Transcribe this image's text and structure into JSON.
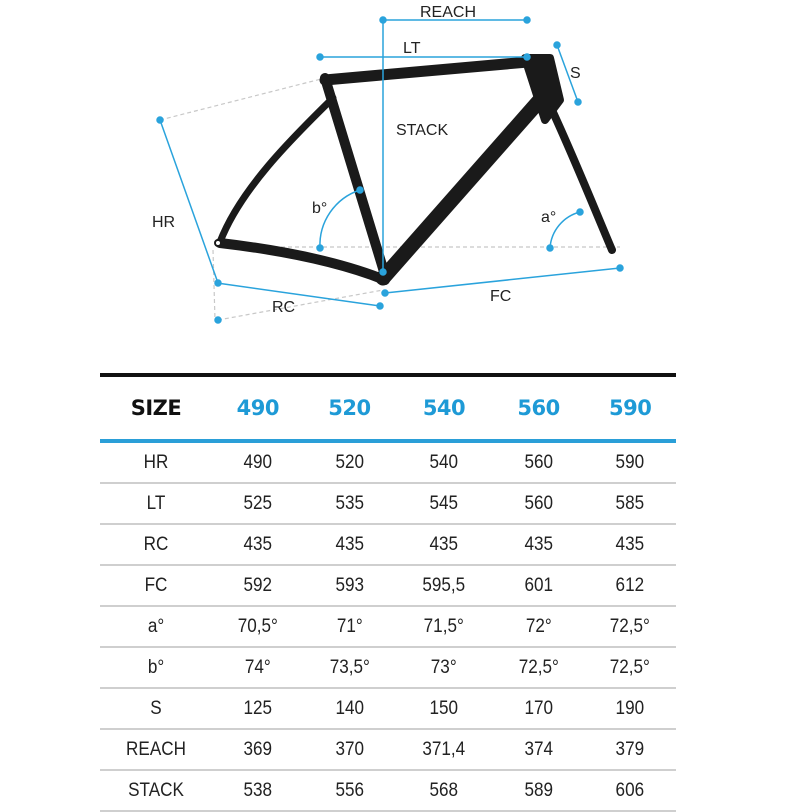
{
  "diagram": {
    "labels": {
      "reach": "REACH",
      "lt": "LT",
      "stack": "STACK",
      "s": "S",
      "hr": "HR",
      "rc": "RC",
      "fc": "FC",
      "a": "a°",
      "b": "b°"
    },
    "colors": {
      "frame": "#1a1a1a",
      "dimension": "#2aa3dc",
      "guide": "#c8c8c8"
    }
  },
  "table": {
    "header_label": "SIZE",
    "sizes": [
      "490",
      "520",
      "540",
      "560",
      "590"
    ],
    "rows": [
      {
        "label": "HR",
        "values": [
          "490",
          "520",
          "540",
          "560",
          "590"
        ]
      },
      {
        "label": "LT",
        "values": [
          "525",
          "535",
          "545",
          "560",
          "585"
        ]
      },
      {
        "label": "RC",
        "values": [
          "435",
          "435",
          "435",
          "435",
          "435"
        ]
      },
      {
        "label": "FC",
        "values": [
          "592",
          "593",
          "595,5",
          "601",
          "612"
        ]
      },
      {
        "label": "a°",
        "values": [
          "70,5°",
          "71°",
          "71,5°",
          "72°",
          "72,5°"
        ]
      },
      {
        "label": "b°",
        "values": [
          "74°",
          "73,5°",
          "73°",
          "72,5°",
          "72,5°"
        ]
      },
      {
        "label": "S",
        "values": [
          "125",
          "140",
          "150",
          "170",
          "190"
        ]
      },
      {
        "label": "REACH",
        "values": [
          "369",
          "370",
          "371,4",
          "374",
          "379"
        ]
      },
      {
        "label": "STACK",
        "values": [
          "538",
          "556",
          "568",
          "589",
          "606"
        ]
      }
    ]
  }
}
